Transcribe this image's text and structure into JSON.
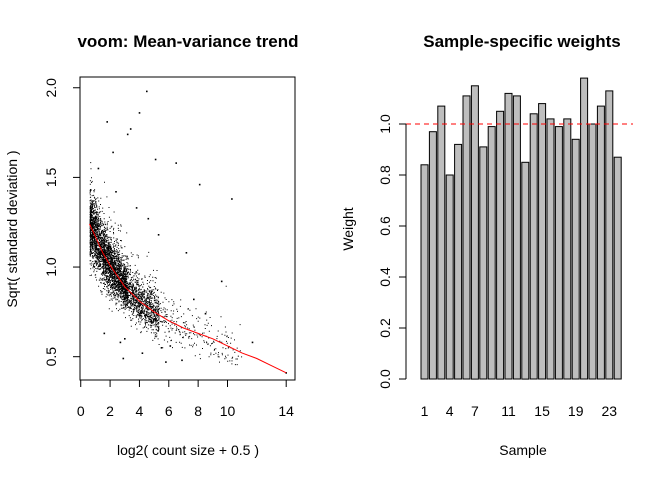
{
  "chart_data": [
    {
      "type": "scatter",
      "title": "voom: Mean-variance trend",
      "xlabel": "log2( count size + 0.5 )",
      "ylabel": "Sqrt( standard deviation )",
      "xlim": [
        -0.05,
        14.6
      ],
      "ylim": [
        0.37,
        2.06
      ],
      "xticks": [
        0,
        2,
        4,
        6,
        8,
        10,
        14
      ],
      "yticks": [
        0.5,
        1.0,
        1.5,
        2.0
      ],
      "ytick_labels": [
        "0.5",
        "1.0",
        "1.5",
        "2.0"
      ],
      "point_color": "#000000",
      "trend_color": "#ff0000",
      "trend": {
        "x": [
          0.6,
          1.0,
          1.5,
          2.0,
          2.5,
          3.0,
          3.5,
          4.0,
          5.0,
          6.0,
          7.0,
          8.0,
          9.0,
          10.0,
          11.0,
          12.0,
          13.0,
          14.0
        ],
        "y": [
          1.24,
          1.17,
          1.08,
          1.01,
          0.95,
          0.89,
          0.85,
          0.81,
          0.75,
          0.7,
          0.66,
          0.63,
          0.6,
          0.56,
          0.52,
          0.49,
          0.45,
          0.41
        ]
      },
      "points": {
        "x": [
          1.8,
          4.0,
          3.2,
          2.2,
          3.4,
          5.1,
          4.5,
          6.5,
          8.1,
          10.3,
          11.7,
          14.0,
          9.6,
          8.5,
          7.7,
          6.9,
          2.9,
          5.8,
          1.2,
          2.4,
          3.8,
          4.6,
          5.3,
          7.2,
          3.0,
          1.6,
          2.7,
          4.2,
          6.1,
          5.5
        ],
        "y": [
          1.81,
          1.86,
          1.74,
          1.64,
          1.77,
          1.6,
          1.98,
          1.58,
          1.46,
          1.38,
          0.58,
          0.41,
          0.92,
          0.74,
          0.82,
          0.48,
          0.49,
          0.47,
          1.55,
          1.42,
          1.33,
          1.27,
          1.18,
          1.08,
          0.6,
          0.63,
          0.58,
          0.52,
          0.56,
          0.55
        ]
      },
      "grid": false
    },
    {
      "type": "bar",
      "title": "Sample-specific weights",
      "xlabel": "Sample",
      "ylabel": "Weight",
      "ylim": [
        0,
        1.2
      ],
      "yticks": [
        0.0,
        0.2,
        0.4,
        0.6,
        0.8,
        1.0
      ],
      "ytick_labels": [
        "0.0",
        "0.2",
        "0.4",
        "0.6",
        "0.8",
        "1.0"
      ],
      "xtick_labels": [
        "1",
        "4",
        "7",
        "11",
        "15",
        "19",
        "23"
      ],
      "xtick_positions": [
        1,
        4,
        7,
        11,
        15,
        19,
        23
      ],
      "categories": [
        "1",
        "2",
        "3",
        "4",
        "5",
        "6",
        "7",
        "8",
        "9",
        "10",
        "11",
        "12",
        "13",
        "14",
        "15",
        "16",
        "17",
        "18",
        "19",
        "20",
        "21",
        "22",
        "23",
        "24"
      ],
      "values": [
        0.84,
        0.97,
        1.07,
        0.8,
        0.92,
        1.11,
        1.15,
        0.91,
        0.99,
        1.05,
        1.12,
        1.11,
        0.85,
        1.04,
        1.08,
        1.02,
        0.99,
        1.02,
        0.94,
        1.18,
        1.0,
        1.07,
        1.13,
        0.87
      ],
      "bar_color": "#bebebe",
      "reference_line": {
        "y": 1.0,
        "color": "#ff0000",
        "style": "dashed"
      },
      "grid": false
    }
  ]
}
